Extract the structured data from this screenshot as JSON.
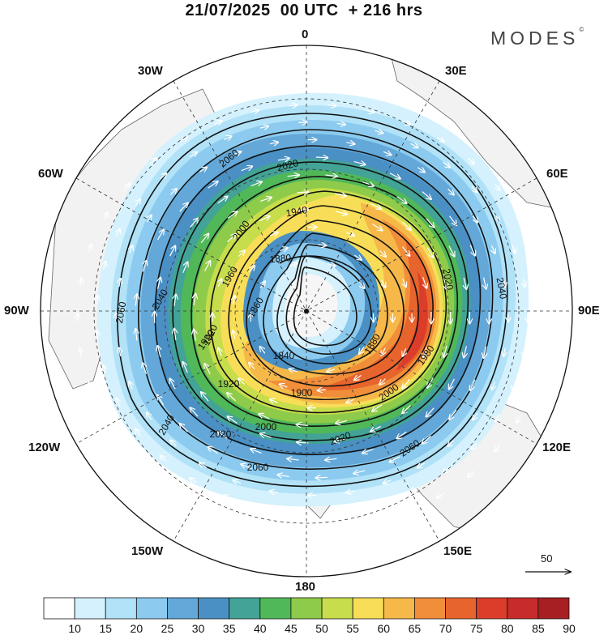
{
  "title": "21/07/2025  00 UTC  + 216 hrs",
  "brand": {
    "name": "MODES",
    "mark": "©"
  },
  "longitude_labels": [
    {
      "id": "lon-0",
      "text": "0"
    },
    {
      "id": "lon-30e",
      "text": "30E"
    },
    {
      "id": "lon-60e",
      "text": "60E"
    },
    {
      "id": "lon-90e",
      "text": "90E"
    },
    {
      "id": "lon-120e",
      "text": "120E"
    },
    {
      "id": "lon-150e",
      "text": "150E"
    },
    {
      "id": "lon-180",
      "text": "180"
    },
    {
      "id": "lon-150w",
      "text": "150W"
    },
    {
      "id": "lon-120w",
      "text": "120W"
    },
    {
      "id": "lon-90w",
      "text": "90W"
    },
    {
      "id": "lon-60w",
      "text": "60W"
    },
    {
      "id": "lon-30w",
      "text": "30W"
    }
  ],
  "reference_vector": "50",
  "colorbar": {
    "labels": [
      "10",
      "15",
      "20",
      "25",
      "30",
      "35",
      "40",
      "45",
      "50",
      "55",
      "60",
      "65",
      "70",
      "75",
      "80",
      "85",
      "90"
    ],
    "colors": [
      "#ffffff",
      "#d4f1fd",
      "#b1e2f7",
      "#8ccbef",
      "#63a8d8",
      "#4a90c4",
      "#43a397",
      "#50b858",
      "#8fcb4a",
      "#c8dd4b",
      "#f8de58",
      "#f6b949",
      "#f18e3a",
      "#e8642d",
      "#db3d2a",
      "#c72b2b",
      "#a71f22"
    ]
  },
  "contour_labels": [
    "2060",
    "2020",
    "1940",
    "1880",
    "1860",
    "1840",
    "1880",
    "1920",
    "1960",
    "2000",
    "2040",
    "2060",
    "2040",
    "2000",
    "1920",
    "1900",
    "2000",
    "2020",
    "2060",
    "2040",
    "2020",
    "2060",
    "2020",
    "1980",
    "1920"
  ],
  "colors": {
    "land": "#f2f2f2",
    "coast": "#666666",
    "grid": "#333333",
    "contour": "#111111",
    "vector": "#ffffff"
  }
}
